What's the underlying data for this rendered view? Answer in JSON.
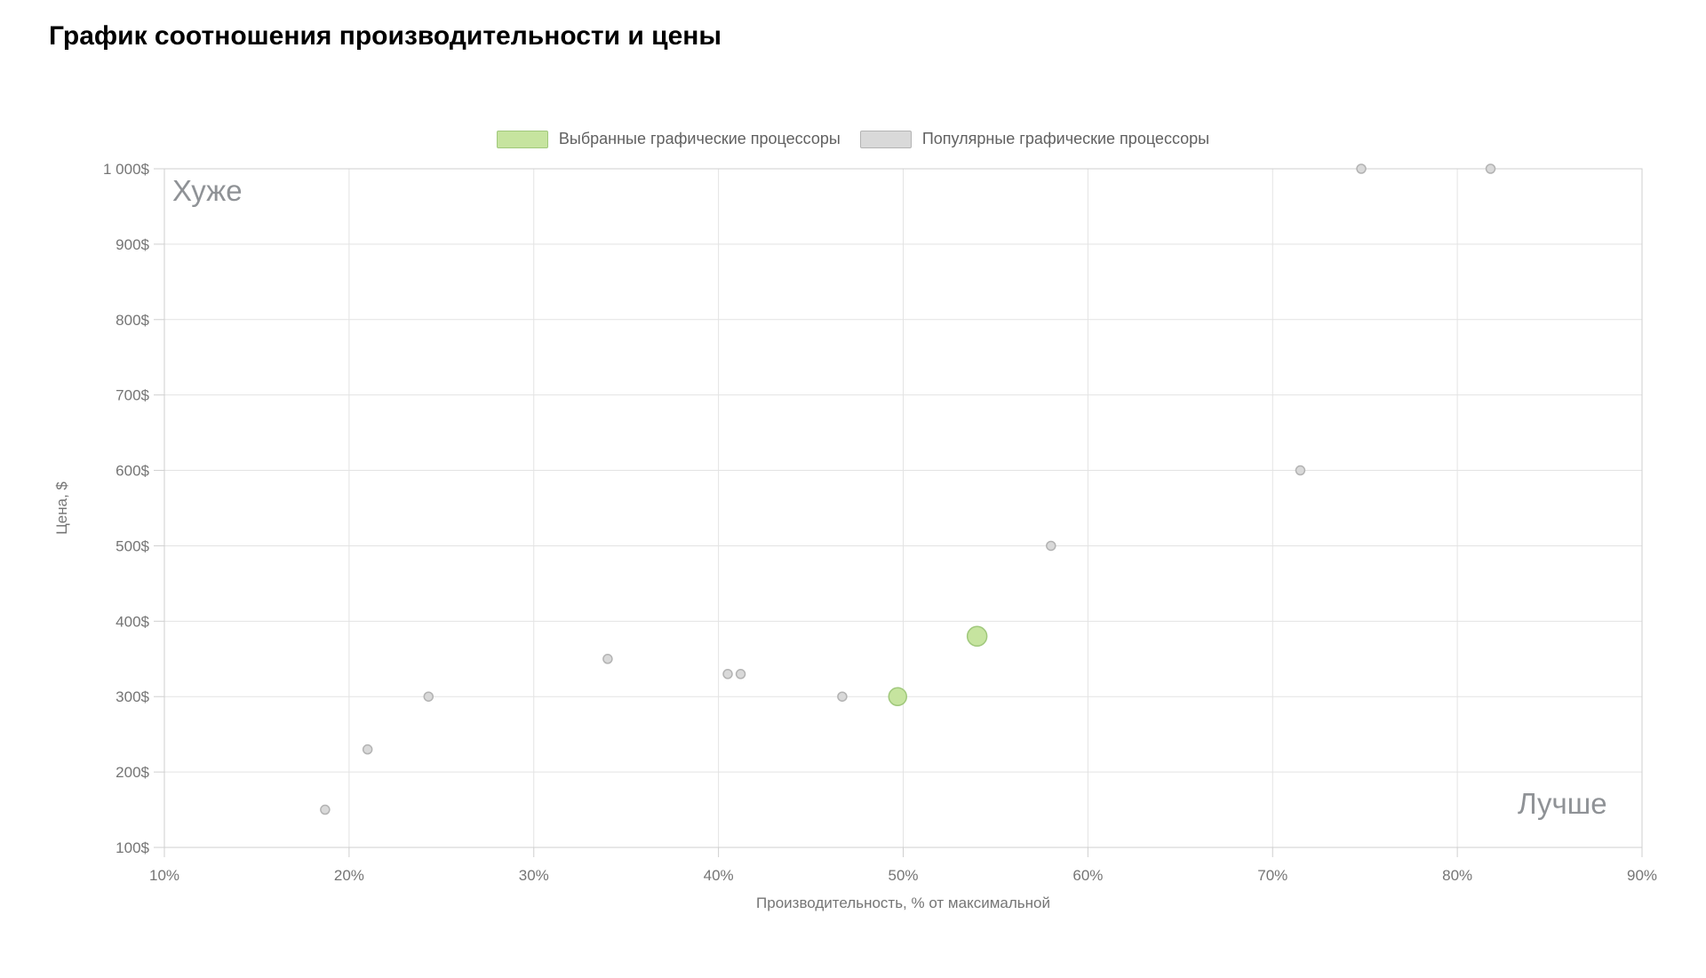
{
  "page": {
    "title": "График соотношения производительности и цены"
  },
  "legend": {
    "items": [
      {
        "label": "Выбранные графические процессоры"
      },
      {
        "label": "Популярные графические процессоры"
      }
    ]
  },
  "chart_data": {
    "type": "scatter",
    "title": "График соотношения производительности и цены",
    "xlabel": "Производительность, % от максимальной",
    "ylabel": "Цена, $",
    "xlim": [
      10,
      90
    ],
    "ylim": [
      100,
      1000
    ],
    "grid": true,
    "legend_position": "top-center",
    "grid_color": "#e3e3e3",
    "border_color": "#cfcfcf",
    "tick_color": "#757575",
    "annotation_color": "#8f9296",
    "annotations": {
      "top_left": "Хуже",
      "bottom_right": "Лучше"
    },
    "x_ticks": [
      {
        "value": 10,
        "label": "10%"
      },
      {
        "value": 20,
        "label": "20%"
      },
      {
        "value": 30,
        "label": "30%"
      },
      {
        "value": 40,
        "label": "40%"
      },
      {
        "value": 50,
        "label": "50%"
      },
      {
        "value": 60,
        "label": "60%"
      },
      {
        "value": 70,
        "label": "70%"
      },
      {
        "value": 80,
        "label": "80%"
      },
      {
        "value": 90,
        "label": "90%"
      }
    ],
    "y_ticks": [
      {
        "value": 100,
        "label": "100$"
      },
      {
        "value": 200,
        "label": "200$"
      },
      {
        "value": 300,
        "label": "300$"
      },
      {
        "value": 400,
        "label": "400$"
      },
      {
        "value": 500,
        "label": "500$"
      },
      {
        "value": 600,
        "label": "600$"
      },
      {
        "value": 700,
        "label": "700$"
      },
      {
        "value": 800,
        "label": "800$"
      },
      {
        "value": 900,
        "label": "900$"
      },
      {
        "value": 1000,
        "label": "1 000$"
      }
    ],
    "series": [
      {
        "key": "selected",
        "name": "Выбранные графические процессоры",
        "color": "#c6e49f",
        "border": "#a0c87c",
        "points": [
          {
            "x": 49.7,
            "y": 300,
            "r": 10
          },
          {
            "x": 54.0,
            "y": 380,
            "r": 11
          }
        ]
      },
      {
        "key": "popular",
        "name": "Популярные графические процессоры",
        "color": "#d9d9d9",
        "border": "#b3b3b3",
        "points": [
          {
            "x": 18.7,
            "y": 150,
            "r": 5
          },
          {
            "x": 21.0,
            "y": 230,
            "r": 5
          },
          {
            "x": 24.3,
            "y": 300,
            "r": 5
          },
          {
            "x": 34.0,
            "y": 350,
            "r": 5
          },
          {
            "x": 40.5,
            "y": 330,
            "r": 5
          },
          {
            "x": 41.2,
            "y": 330,
            "r": 5
          },
          {
            "x": 46.7,
            "y": 300,
            "r": 5
          },
          {
            "x": 58.0,
            "y": 500,
            "r": 5
          },
          {
            "x": 71.5,
            "y": 600,
            "r": 5
          },
          {
            "x": 74.8,
            "y": 1000,
            "r": 5
          },
          {
            "x": 81.8,
            "y": 1000,
            "r": 5
          }
        ]
      }
    ]
  }
}
